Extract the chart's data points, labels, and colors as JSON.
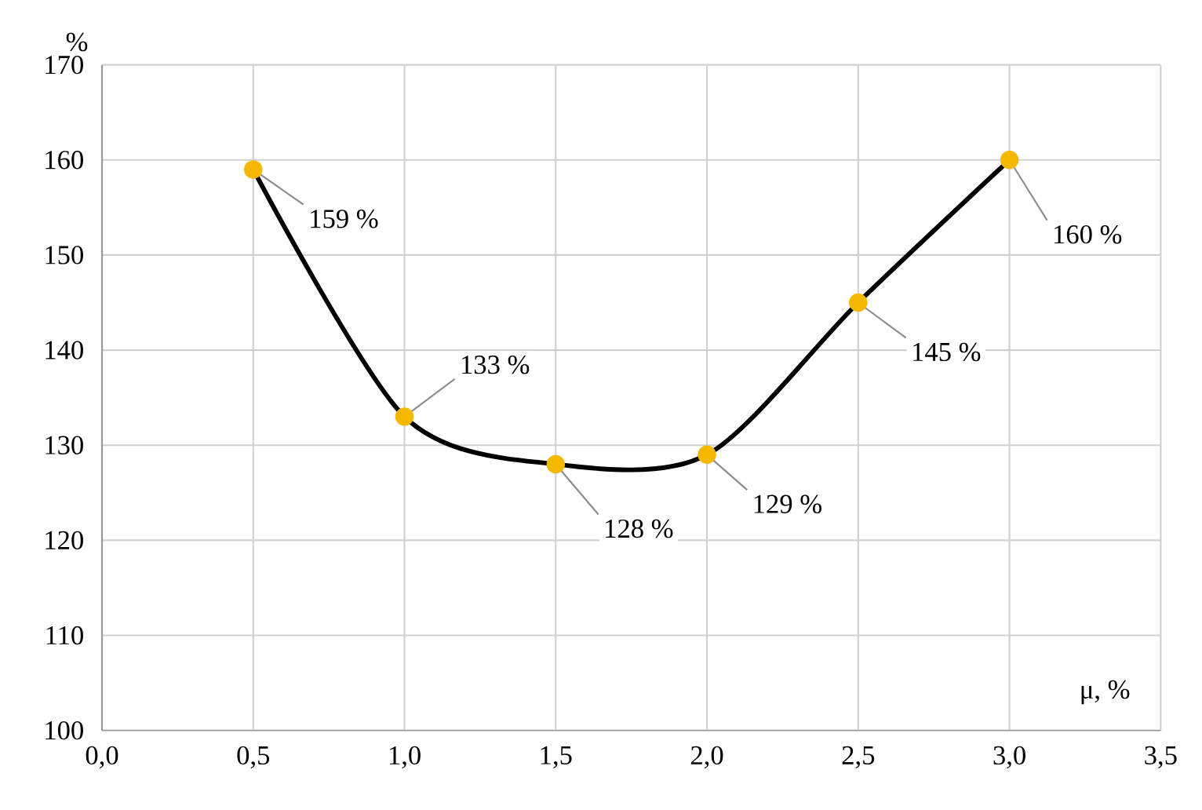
{
  "chart_data": {
    "type": "line",
    "xlabel": "μ, %",
    "ylabel": "%",
    "x": [
      0.5,
      1.0,
      1.5,
      2.0,
      2.5,
      3.0
    ],
    "series": [
      {
        "color": "#000000",
        "colors": [
          "#f5b800",
          "#f5b800",
          "#f5b800",
          "#f5b800",
          "#f5b800",
          "#f5b800"
        ],
        "values": [
          159,
          133,
          128,
          129,
          145,
          160
        ],
        "value_labels": [
          "159 %",
          "133 %",
          "128 %",
          "129 %",
          "145 %",
          "160 %"
        ]
      }
    ],
    "xlim": [
      0,
      3.5
    ],
    "xticks": [
      {
        "value": 0,
        "label": "0,0"
      },
      {
        "value": 0.5,
        "label": "0,5"
      },
      {
        "value": 1,
        "label": "1,0"
      },
      {
        "value": 1.5,
        "label": "1,5"
      },
      {
        "value": 2,
        "label": "2,0"
      },
      {
        "value": 2.5,
        "label": "2,5"
      },
      {
        "value": 3,
        "label": "3,0"
      },
      {
        "value": 3.5,
        "label": "3,5"
      }
    ],
    "ylim": [
      100,
      170
    ],
    "yticks": [
      100,
      110,
      120,
      130,
      140,
      150,
      160,
      170
    ],
    "grid": true,
    "marker": "circle",
    "line_style": "solid"
  }
}
